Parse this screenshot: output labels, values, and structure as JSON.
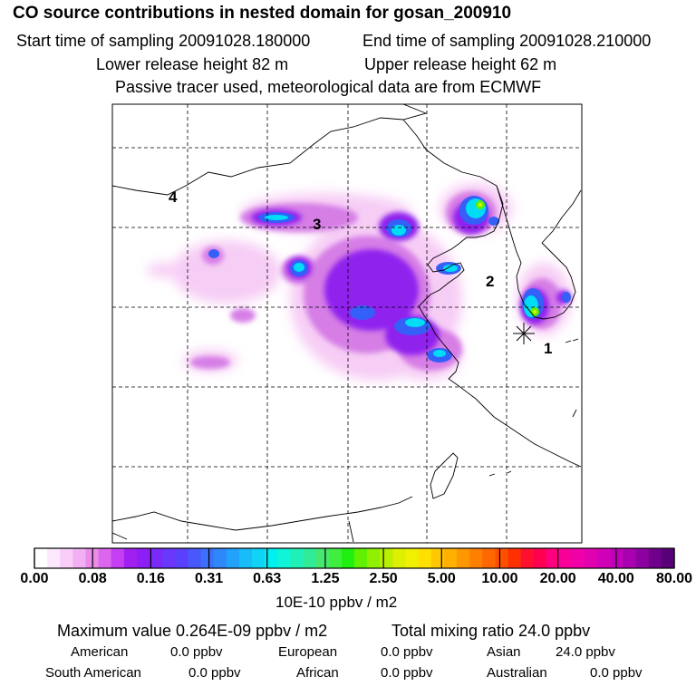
{
  "header": {
    "title": "CO  source contributions in nested domain for gosan_200910",
    "start_label": "Start time of sampling 20091028.180000",
    "end_label": "End time of sampling 20091028.210000",
    "lower_label": "Lower release height   82 m",
    "upper_label": "Upper release height   62 m",
    "tracer_line": "Passive tracer used, meteorological data are from ECMWF"
  },
  "map": {
    "markers": [
      "1",
      "2",
      "3",
      "4"
    ],
    "receptor_symbol": "asterisk"
  },
  "colorbar": {
    "tick_labels": [
      "0.00",
      "0.08",
      "0.16",
      "0.31",
      "0.63",
      "1.25",
      "2.50",
      "5.00",
      "10.00",
      "20.00",
      "40.00",
      "80.00"
    ],
    "colors": [
      "#ffffff",
      "#fce8fc",
      "#f8cef8",
      "#f2b0f2",
      "#e88de8",
      "#dd66ee",
      "#c43ef2",
      "#a020f0",
      "#8c1ef6",
      "#7a2af8",
      "#6a38fa",
      "#5a40fc",
      "#4858fd",
      "#3a70fc",
      "#2e88fb",
      "#22a2fa",
      "#18bcf8",
      "#10d4f6",
      "#00f0f0",
      "#10f4d8",
      "#20f0b8",
      "#30ec98",
      "#48e870",
      "#40ee40",
      "#20f010",
      "#60f000",
      "#90f000",
      "#b8f000",
      "#dcf000",
      "#f0f000",
      "#ffe000",
      "#ffc800",
      "#ffb000",
      "#ff9800",
      "#ff8000",
      "#ff6800",
      "#ff5000",
      "#ff3000",
      "#ff1030",
      "#ff0050",
      "#ff0080",
      "#f80098",
      "#f000a8",
      "#e000b0",
      "#d000b8",
      "#c000b8",
      "#a800b0",
      "#8c00a0",
      "#70008c",
      "#580078"
    ],
    "unit_label": "10E-10 ppbv / m2"
  },
  "chart_data": {
    "type": "heatmap",
    "title": "CO  source contributions in nested domain for gosan_200910",
    "scale_unit": "10E-10 ppbv / m2",
    "scale_ticks": [
      0.0,
      0.08,
      0.16,
      0.31,
      0.63,
      1.25,
      2.5,
      5.0,
      10.0,
      20.0,
      40.0,
      80.0
    ],
    "maximum_value": "0.264E-09 ppbv / m2",
    "total_mixing_ratio_ppbv": 24.0,
    "source_regions_ppbv": {
      "American": 0.0,
      "European": 0.0,
      "Asian": 24.0,
      "South American": 0.0,
      "African": 0.0,
      "Australian": 0.0
    },
    "grid": true
  },
  "stats": {
    "max_line": "Maximum value  0.264E-09 ppbv / m2",
    "total_line": "Total mixing ratio       24.0 ppbv",
    "regions": [
      {
        "name": "American",
        "value": "0.0 ppbv"
      },
      {
        "name": "European",
        "value": "0.0 ppbv"
      },
      {
        "name": "Asian",
        "value": "24.0 ppbv"
      },
      {
        "name": "South American",
        "value": "0.0 ppbv"
      },
      {
        "name": "African",
        "value": "0.0 ppbv"
      },
      {
        "name": "Australian",
        "value": "0.0 ppbv"
      }
    ]
  }
}
